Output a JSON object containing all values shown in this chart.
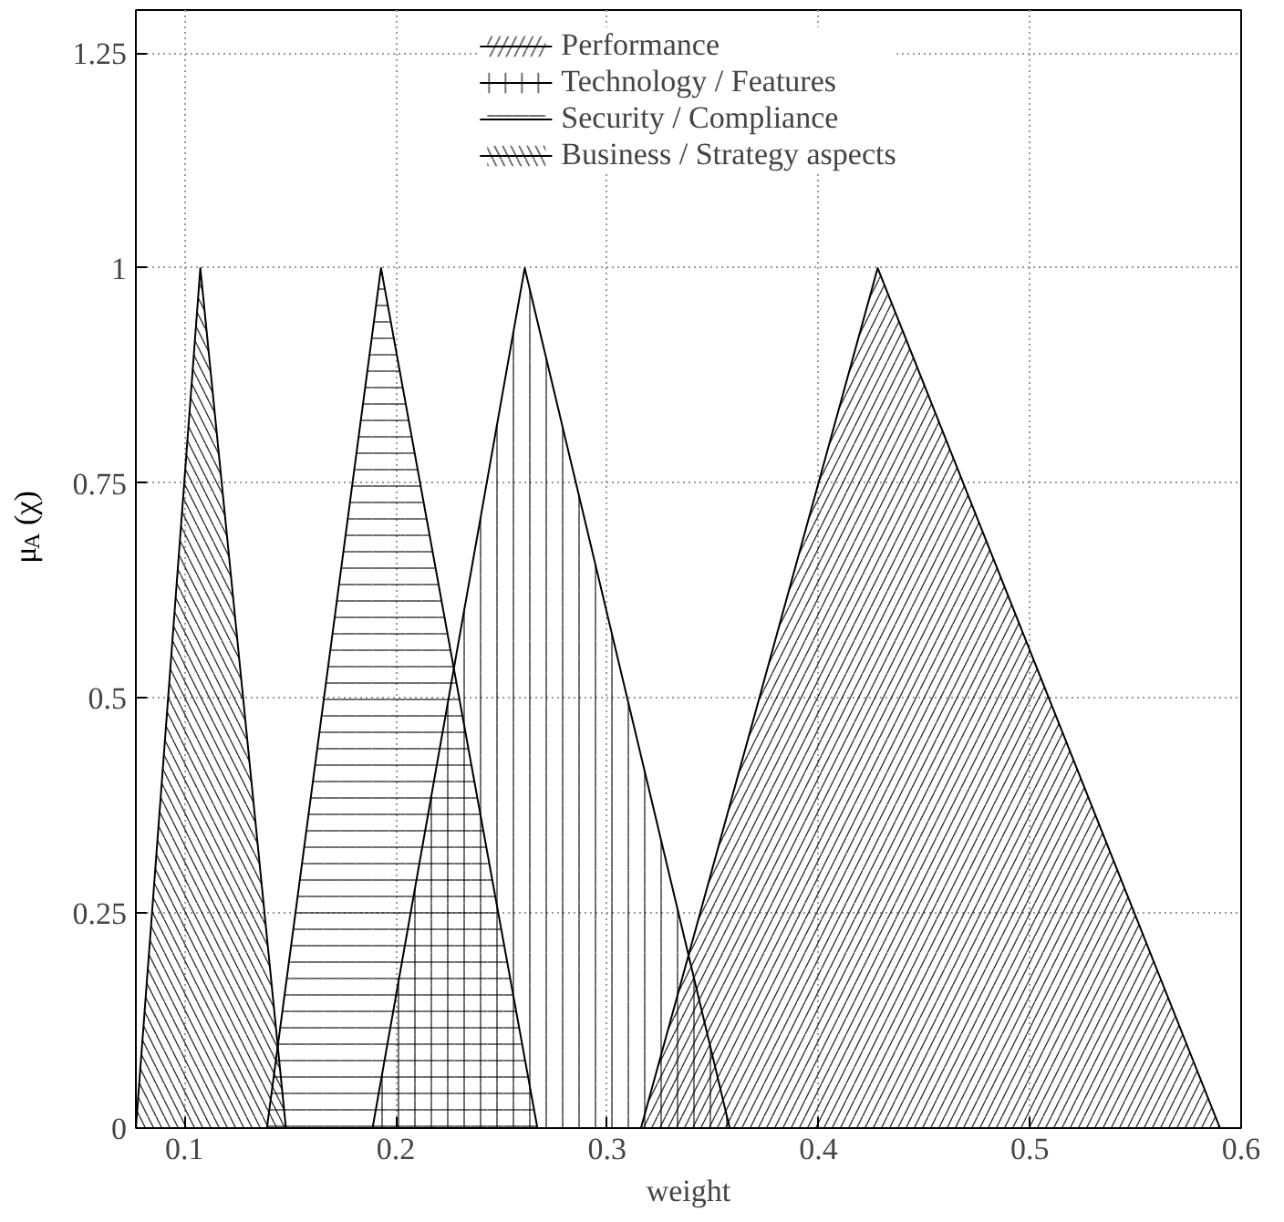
{
  "chart_data": {
    "type": "area",
    "xlabel": "weight",
    "ylabel": "μ$_{A}$ (χ)",
    "xlim": [
      0.077,
      0.6
    ],
    "ylim": [
      0,
      1.3
    ],
    "xticks": [
      0.1,
      0.2,
      0.3,
      0.4,
      0.5,
      0.6
    ],
    "yticks": [
      0,
      0.25,
      0.5,
      0.75,
      1,
      1.25
    ],
    "grid": true,
    "legend": "top",
    "series": [
      {
        "name": "Performance",
        "color": "#000000",
        "x": [
          0.316,
          0.428,
          0.59
        ],
        "values": [
          0,
          1,
          0
        ]
      },
      {
        "name": "Technology / Features",
        "color": "#000000",
        "x": [
          0.189,
          0.261,
          0.358
        ],
        "values": [
          0,
          1,
          0
        ]
      },
      {
        "name": "Security / Compliance",
        "color": "#000000",
        "x": [
          0.139,
          0.193,
          0.267
        ],
        "values": [
          0,
          1,
          0
        ]
      },
      {
        "name": "Business / Strategy aspects",
        "color": "#000000",
        "x": [
          0.077,
          0.1075,
          0.148
        ],
        "values": [
          0,
          1,
          0
        ]
      }
    ]
  }
}
